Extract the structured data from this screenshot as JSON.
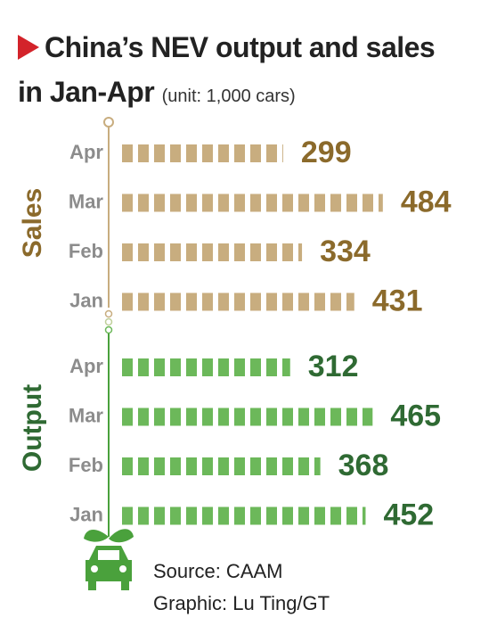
{
  "header": {
    "title": "China’s NEV output and sales in Jan-Apr",
    "subtitle": "(unit: 1,000 cars)"
  },
  "chart_data": [
    {
      "type": "bar",
      "orientation": "horizontal",
      "title": "Sales",
      "categories": [
        "Apr",
        "Mar",
        "Feb",
        "Jan"
      ],
      "values": [
        299,
        484,
        334,
        431
      ],
      "color": "#c8ad7f",
      "label_color": "#8b6a2b"
    },
    {
      "type": "bar",
      "orientation": "horizontal",
      "title": "Output",
      "categories": [
        "Apr",
        "Mar",
        "Feb",
        "Jan"
      ],
      "values": [
        312,
        465,
        368,
        452
      ],
      "color": "#6cb85a",
      "label_color": "#2f6a33"
    }
  ],
  "footer": {
    "source": "Source: CAAM",
    "credit": "Graphic: Lu Ting/GT"
  }
}
